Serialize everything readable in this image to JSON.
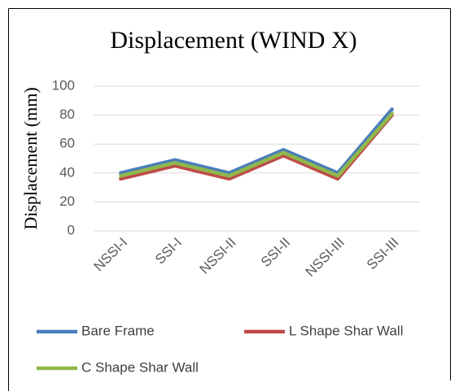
{
  "chart_data": {
    "type": "line",
    "title": "Displacement (WIND X)",
    "y_label": "Displacement  (mm)",
    "categories": [
      "NSSI-I",
      "SSI-I",
      "NSSI-II",
      "SSI-II",
      "NSSI-III",
      "SSI-III"
    ],
    "series": [
      {
        "name": "Bare Frame",
        "color": "#4a7ebb",
        "values": [
          40,
          49,
          40,
          56,
          40,
          84
        ]
      },
      {
        "name": "L Shape Shar Wall",
        "color": "#be4b48",
        "values": [
          36,
          45,
          36,
          52,
          36,
          80
        ]
      },
      {
        "name": "C Shape Shar Wall",
        "color": "#8fb84a",
        "values": [
          38,
          47,
          38,
          54,
          38,
          81
        ]
      }
    ],
    "ylim": [
      0,
      100
    ],
    "yticks": [
      0,
      20,
      40,
      60,
      80,
      100
    ],
    "grid": true
  }
}
